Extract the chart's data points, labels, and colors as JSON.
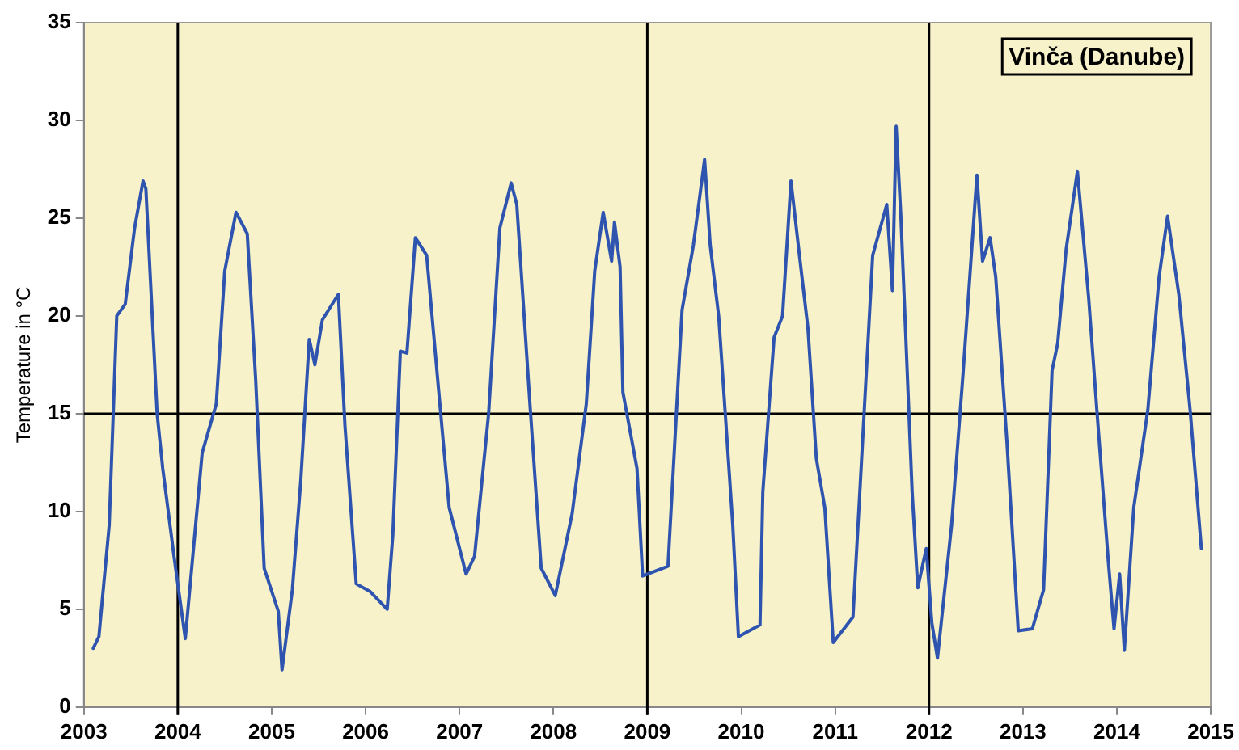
{
  "chart_data": {
    "type": "line",
    "ylabel": "Temperature in °C",
    "annotations": [
      "Vinča (Danube)"
    ],
    "xlim": [
      2003,
      2015
    ],
    "xticks": [
      2003,
      2004,
      2005,
      2006,
      2007,
      2008,
      2009,
      2010,
      2011,
      2012,
      2013,
      2014,
      2015
    ],
    "ylim": [
      0,
      35
    ],
    "yticks": [
      0,
      5,
      10,
      15,
      20,
      25,
      30,
      35
    ],
    "grid": false,
    "legend": false,
    "marker": "none",
    "line_style": "solid",
    "ref_lines": [
      {
        "axis": "x",
        "value": 2004,
        "color": "#000000"
      },
      {
        "axis": "x",
        "value": 2009,
        "color": "#000000"
      },
      {
        "axis": "x",
        "value": 2012,
        "color": "#000000"
      },
      {
        "axis": "y",
        "value": 15,
        "color": "#000000"
      }
    ],
    "series": [
      {
        "color": "#2e54b0",
        "x": [
          2003.1,
          2003.16,
          2003.27,
          2003.35,
          2003.44,
          2003.54,
          2003.63,
          2003.66,
          2003.78,
          2003.84,
          2003.96,
          2004.08,
          2004.26,
          2004.41,
          2004.5,
          2004.62,
          2004.74,
          2004.83,
          2004.92,
          2005.07,
          2005.11,
          2005.22,
          2005.31,
          2005.4,
          2005.46,
          2005.54,
          2005.71,
          2005.78,
          2005.9,
          2006.05,
          2006.23,
          2006.29,
          2006.37,
          2006.44,
          2006.53,
          2006.65,
          2006.8,
          2006.89,
          2007.07,
          2007.16,
          2007.31,
          2007.43,
          2007.55,
          2007.61,
          2007.75,
          2007.87,
          2008.02,
          2008.2,
          2008.35,
          2008.44,
          2008.53,
          2008.62,
          2008.65,
          2008.71,
          2008.74,
          2008.89,
          2008.95,
          2009.22,
          2009.37,
          2009.49,
          2009.61,
          2009.67,
          2009.76,
          2009.91,
          2009.97,
          2010.2,
          2010.23,
          2010.35,
          2010.44,
          2010.53,
          2010.62,
          2010.71,
          2010.8,
          2010.89,
          2010.98,
          2011.19,
          2011.28,
          2011.4,
          2011.55,
          2011.61,
          2011.65,
          2011.7,
          2011.82,
          2011.88,
          2011.97,
          2012.03,
          2012.09,
          2012.24,
          2012.36,
          2012.51,
          2012.57,
          2012.65,
          2012.71,
          2012.83,
          2012.95,
          2013.1,
          2013.22,
          2013.31,
          2013.37,
          2013.46,
          2013.58,
          2013.7,
          2013.79,
          2013.91,
          2013.97,
          2014.03,
          2014.08,
          2014.18,
          2014.33,
          2014.45,
          2014.54,
          2014.66,
          2014.78,
          2014.9
        ],
        "values": [
          3.0,
          3.6,
          9.3,
          20.0,
          20.6,
          24.5,
          26.9,
          26.5,
          15.0,
          12.2,
          7.7,
          3.5,
          13.0,
          15.5,
          22.3,
          25.3,
          24.2,
          16.7,
          7.1,
          4.9,
          1.9,
          6.0,
          11.6,
          18.8,
          17.5,
          19.8,
          21.1,
          14.4,
          6.3,
          5.9,
          5.0,
          8.8,
          18.2,
          18.1,
          24.0,
          23.1,
          15.0,
          10.2,
          6.8,
          7.7,
          15.0,
          24.5,
          26.8,
          25.7,
          15.5,
          7.1,
          5.7,
          9.9,
          15.5,
          22.3,
          25.3,
          22.8,
          24.8,
          22.5,
          16.1,
          12.2,
          6.7,
          7.2,
          20.3,
          23.6,
          28.0,
          23.6,
          20.0,
          9.3,
          3.6,
          4.2,
          11.0,
          18.9,
          20.0,
          26.9,
          23.1,
          19.4,
          12.7,
          10.2,
          3.3,
          4.6,
          12.5,
          23.1,
          25.7,
          21.3,
          29.7,
          25.1,
          11.0,
          6.1,
          8.1,
          4.3,
          2.5,
          9.3,
          16.9,
          27.2,
          22.8,
          24.0,
          22.0,
          13.5,
          3.9,
          4.0,
          6.0,
          17.2,
          18.6,
          23.4,
          27.4,
          20.9,
          15.0,
          7.4,
          4.0,
          6.8,
          2.9,
          10.2,
          15.2,
          22.0,
          25.1,
          21.1,
          15.2,
          8.1
        ]
      }
    ]
  }
}
